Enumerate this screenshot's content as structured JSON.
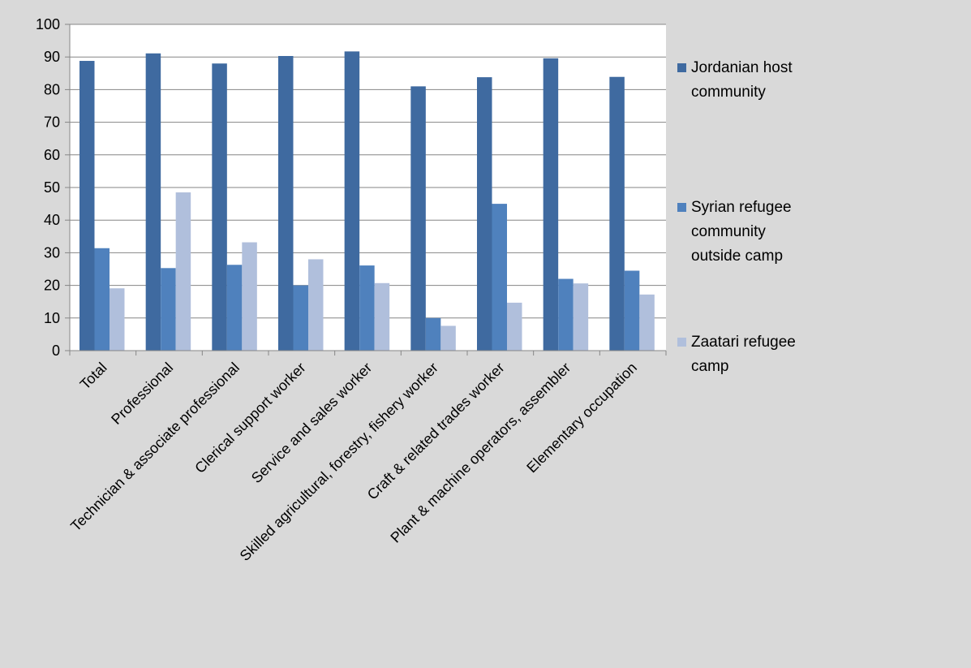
{
  "chart_data": {
    "type": "bar",
    "title": "",
    "xlabel": "",
    "ylabel": "",
    "ylim": [
      0,
      100
    ],
    "yticks": [
      0,
      10,
      20,
      30,
      40,
      50,
      60,
      70,
      80,
      90,
      100
    ],
    "grid": true,
    "legend_position": "right",
    "categories": [
      "Total",
      "Professional",
      "Technician & associate professional",
      "Clerical support worker",
      "Service and sales worker",
      "Skilled agricultural, forestry, fishery worker",
      "Craft & related trades worker",
      "Plant & machine operators, assembler",
      "Elementary occupation"
    ],
    "series": [
      {
        "name": "Jordanian host community",
        "color": "#3f6aa0",
        "legend_lines": [
          "Jordanian host",
          "community"
        ],
        "values": [
          88.8,
          91.1,
          88.0,
          90.3,
          91.7,
          81.0,
          83.8,
          89.6,
          83.9
        ]
      },
      {
        "name": "Syrian refugee community outside camp",
        "color": "#4f81bd",
        "legend_lines": [
          "Syrian refugee",
          "community",
          "outside camp"
        ],
        "values": [
          31.4,
          25.3,
          26.3,
          20.0,
          26.1,
          10.0,
          45.0,
          22.0,
          24.5
        ]
      },
      {
        "name": "Zaatari refugee camp",
        "color": "#b0bfdc",
        "legend_lines": [
          "Zaatari refugee",
          "camp"
        ],
        "values": [
          19.1,
          48.5,
          33.2,
          28.0,
          20.7,
          7.6,
          14.7,
          20.6,
          17.2
        ]
      }
    ]
  }
}
